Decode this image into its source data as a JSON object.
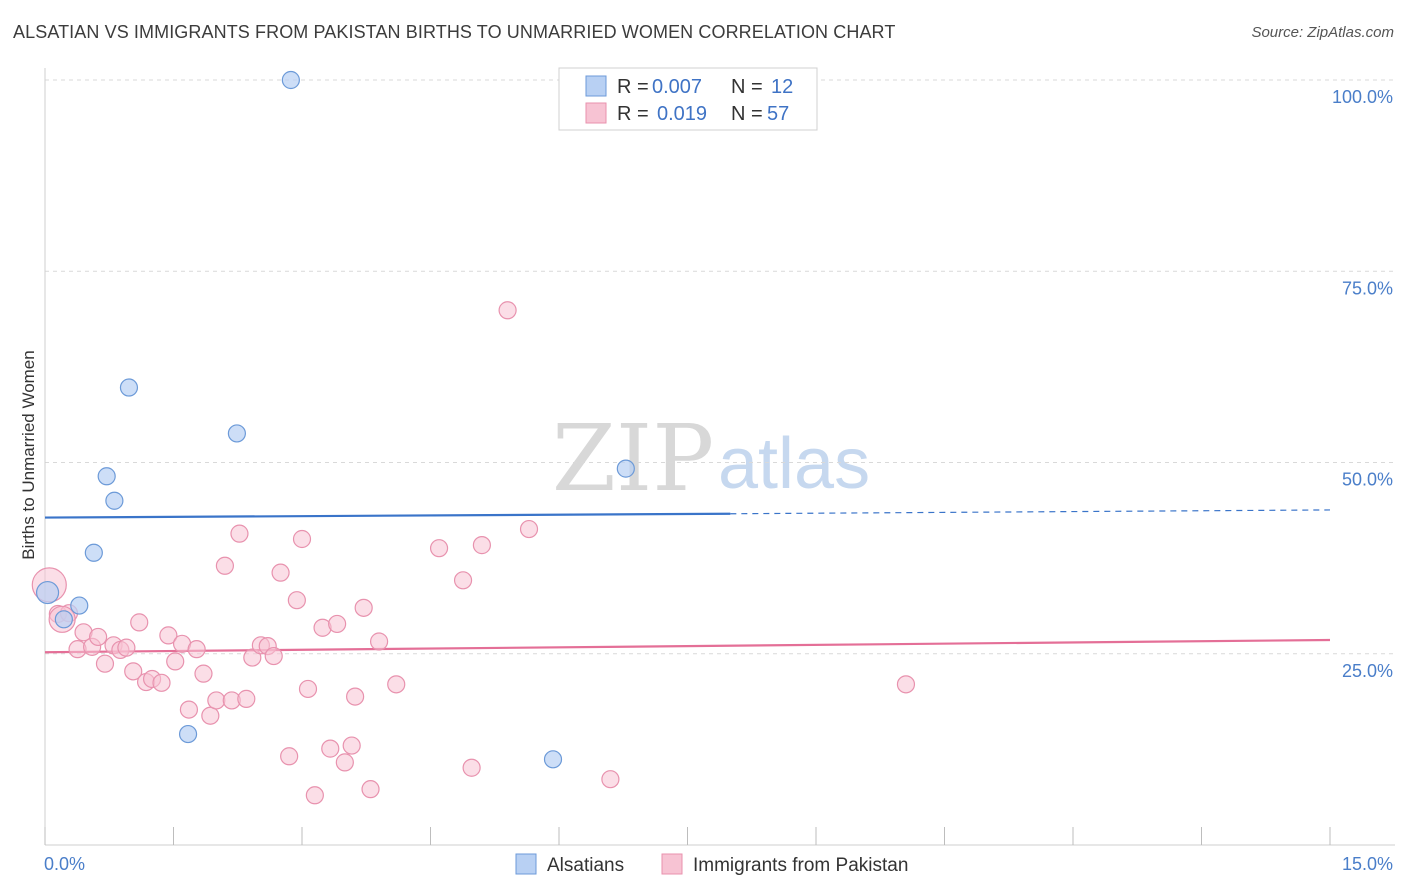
{
  "title": "ALSATIAN VS IMMIGRANTS FROM PAKISTAN BIRTHS TO UNMARRIED WOMEN CORRELATION CHART",
  "source": "Source: ZipAtlas.com",
  "watermark": {
    "zip": "ZIP",
    "atlas": "atlas"
  },
  "legend": {
    "r_label": "R =",
    "n_label": "N =",
    "rows": [
      {
        "series": "Alsatians",
        "r": "0.007",
        "n": "12"
      },
      {
        "series": "Immigrants from Pakistan",
        "r": "0.019",
        "n": "57"
      }
    ]
  },
  "colors": {
    "alsatians_fill": "#b8d0f3",
    "alsatians_stroke": "#6c9ad8",
    "alsatians_line": "#3a74c9",
    "pakistan_fill": "#f7c3d3",
    "pakistan_stroke": "#e892ae",
    "pakistan_line": "#e46f97",
    "grid": "#d9d9d9",
    "tick_text": "#4a7ec9"
  },
  "chart_data": {
    "type": "scatter",
    "title": "ALSATIAN VS IMMIGRANTS FROM PAKISTAN BIRTHS TO UNMARRIED WOMEN CORRELATION CHART",
    "xlabel": "",
    "ylabel": "Births to Unmarried Women",
    "xlim": [
      0,
      15
    ],
    "ylim": [
      0,
      100
    ],
    "x_tick_labels": [
      "0.0%",
      "15.0%"
    ],
    "y_ticks": [
      25,
      50,
      75,
      100
    ],
    "y_tick_labels": [
      "25.0%",
      "50.0%",
      "75.0%",
      "100.0%"
    ],
    "grid": true,
    "legend_position": "top-center",
    "series": [
      {
        "name": "Alsatians",
        "points": [
          [
            0.03,
            33.0
          ],
          [
            0.22,
            29.5
          ],
          [
            0.4,
            31.3
          ],
          [
            0.57,
            38.2
          ],
          [
            0.72,
            48.2
          ],
          [
            0.81,
            45.0
          ],
          [
            0.98,
            59.8
          ],
          [
            1.67,
            14.5
          ],
          [
            2.24,
            53.8
          ],
          [
            2.87,
            100.0
          ],
          [
            5.93,
            11.2
          ],
          [
            6.78,
            49.2
          ]
        ],
        "trend": {
          "x0": 0,
          "y0": 42.8,
          "x1": 8.0,
          "y1": 43.3,
          "dashed_to_x": 15.0,
          "dashed_to_y": 43.8
        }
      },
      {
        "name": "Immigrants from Pakistan",
        "points": [
          [
            0.05,
            34.0
          ],
          [
            0.15,
            30.2
          ],
          [
            0.28,
            30.3
          ],
          [
            0.38,
            25.6
          ],
          [
            0.45,
            27.8
          ],
          [
            0.55,
            25.9
          ],
          [
            0.62,
            27.2
          ],
          [
            0.7,
            23.7
          ],
          [
            0.8,
            26.1
          ],
          [
            0.88,
            25.5
          ],
          [
            0.95,
            25.8
          ],
          [
            1.03,
            22.7
          ],
          [
            1.1,
            29.1
          ],
          [
            1.18,
            21.3
          ],
          [
            1.25,
            21.7
          ],
          [
            1.36,
            21.2
          ],
          [
            1.44,
            27.4
          ],
          [
            1.52,
            24.0
          ],
          [
            1.6,
            26.3
          ],
          [
            1.68,
            17.7
          ],
          [
            1.77,
            25.6
          ],
          [
            1.85,
            22.4
          ],
          [
            1.93,
            16.9
          ],
          [
            2.0,
            18.9
          ],
          [
            2.1,
            36.5
          ],
          [
            2.18,
            18.9
          ],
          [
            2.27,
            40.7
          ],
          [
            2.35,
            19.1
          ],
          [
            2.42,
            24.5
          ],
          [
            2.52,
            26.1
          ],
          [
            2.6,
            26.0
          ],
          [
            2.67,
            24.7
          ],
          [
            2.75,
            35.6
          ],
          [
            2.85,
            11.6
          ],
          [
            2.94,
            32.0
          ],
          [
            3.0,
            40.0
          ],
          [
            3.07,
            20.4
          ],
          [
            3.15,
            6.5
          ],
          [
            3.24,
            28.4
          ],
          [
            3.33,
            12.6
          ],
          [
            3.41,
            28.9
          ],
          [
            3.5,
            10.8
          ],
          [
            3.58,
            13.0
          ],
          [
            3.62,
            19.4
          ],
          [
            3.72,
            31.0
          ],
          [
            3.8,
            7.3
          ],
          [
            3.9,
            26.6
          ],
          [
            4.1,
            21.0
          ],
          [
            4.6,
            38.8
          ],
          [
            4.88,
            34.6
          ],
          [
            4.98,
            10.1
          ],
          [
            5.1,
            39.2
          ],
          [
            5.4,
            69.9
          ],
          [
            5.65,
            41.3
          ],
          [
            6.6,
            8.6
          ],
          [
            10.05,
            21.0
          ],
          [
            0.2,
            29.5
          ]
        ],
        "trend": {
          "x0": 0,
          "y0": 25.2,
          "x1": 15.0,
          "y1": 26.8
        }
      }
    ]
  }
}
